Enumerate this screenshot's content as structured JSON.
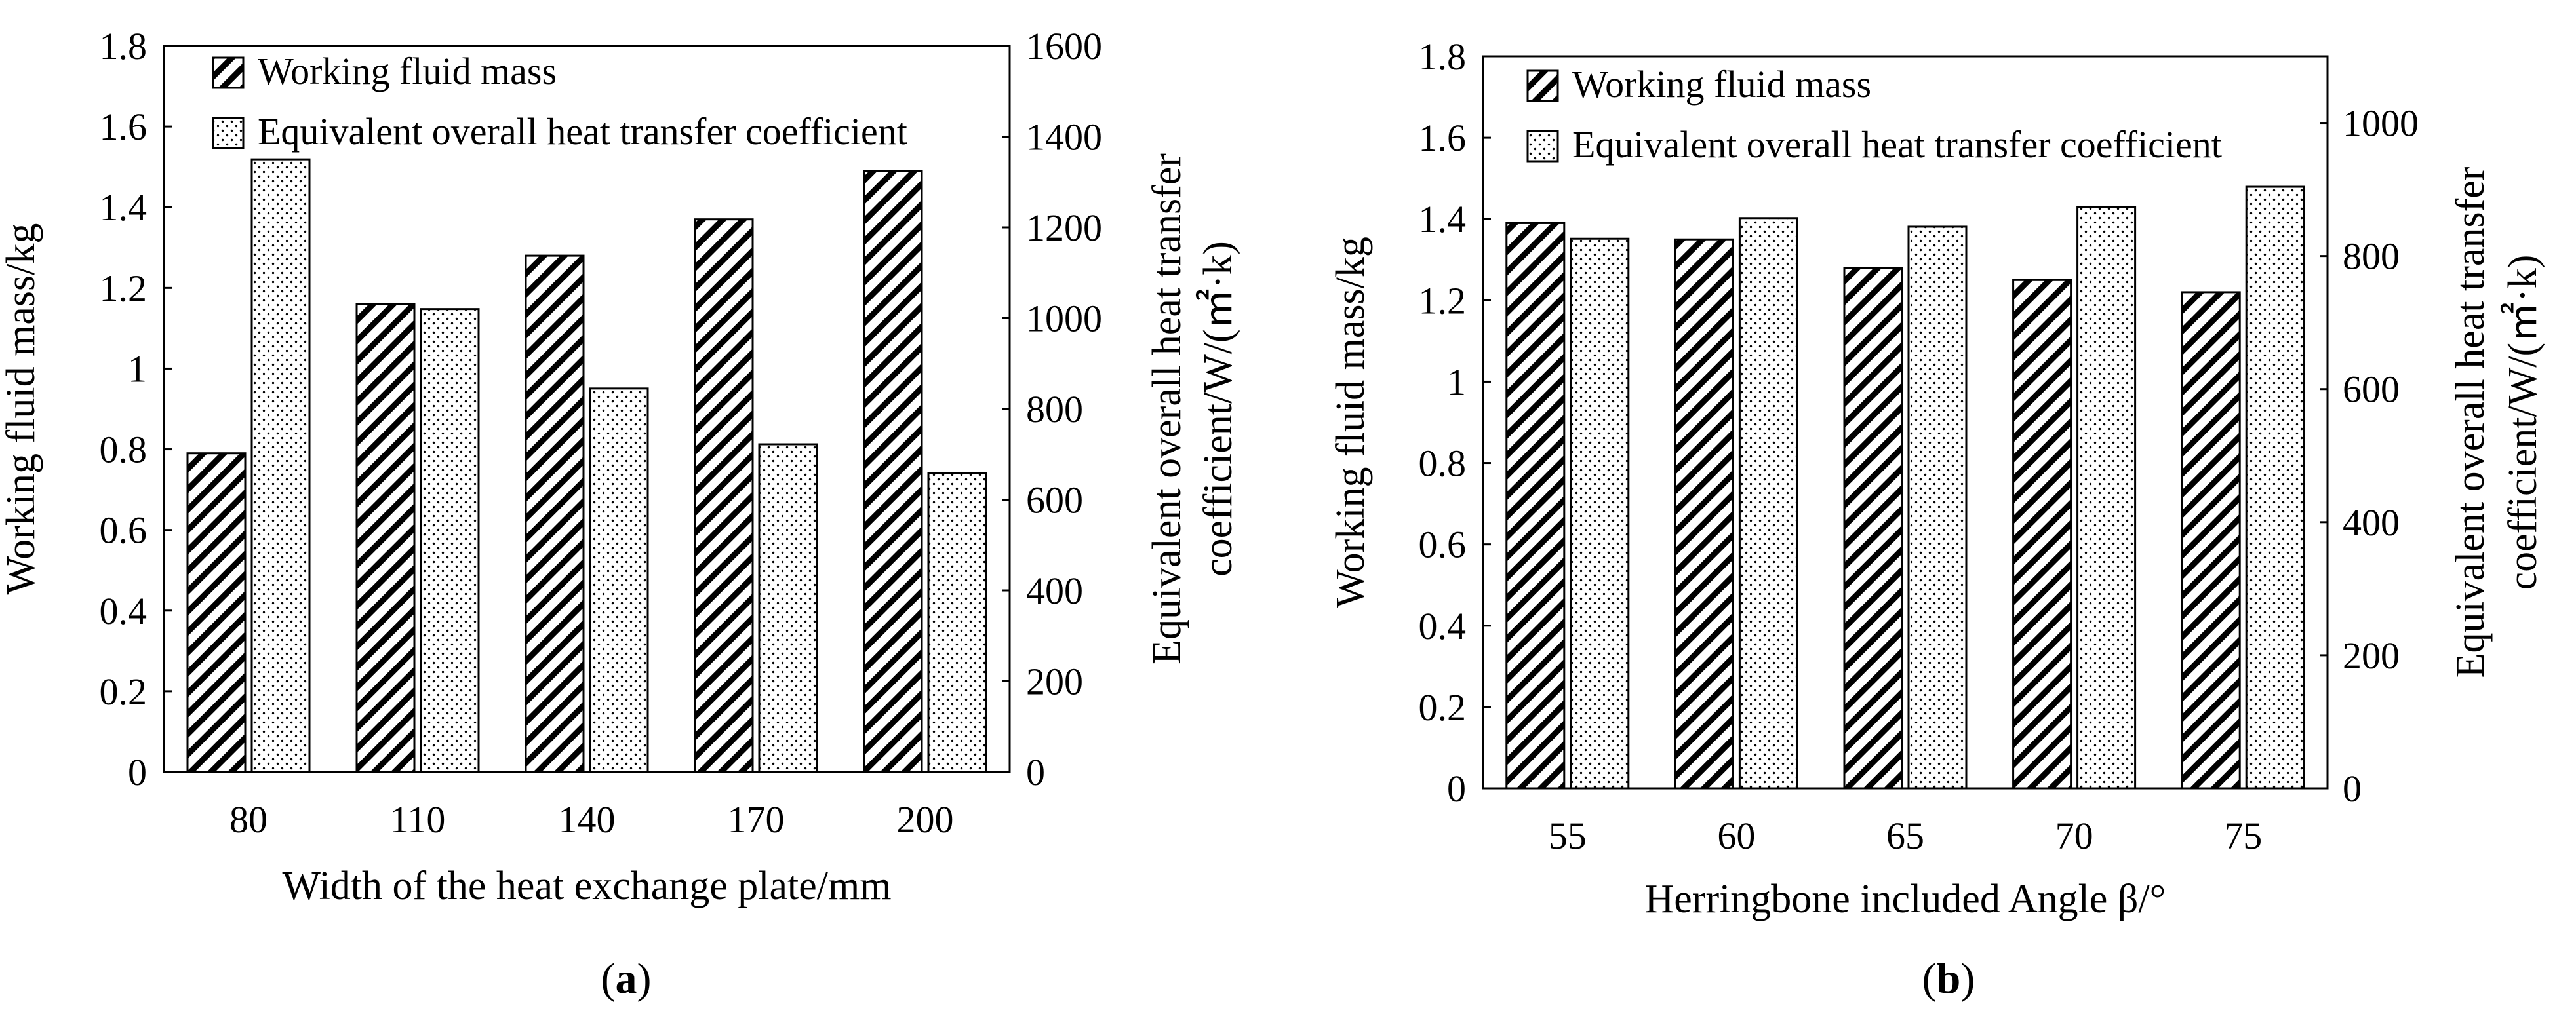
{
  "colors": {
    "axis": "#000000",
    "bar_fill": "#ffffff",
    "background": "#ffffff"
  },
  "chart_data": [
    {
      "type": "bar",
      "panel_label": "a",
      "xlabel": "Width of the heat exchange plate/mm",
      "ylabel": "Working fluid mass/kg",
      "y2label_line1": "Equivalent overall heat transfer",
      "y2label_line2": "coefficient/W/(㎡·k)",
      "categories": [
        "80",
        "110",
        "140",
        "170",
        "200"
      ],
      "ylim": [
        0,
        1.8
      ],
      "y_ticks": [
        "0",
        "0.2",
        "0.4",
        "0.6",
        "0.8",
        "1",
        "1.2",
        "1.4",
        "1.6",
        "1.8"
      ],
      "y2lim": [
        0,
        1600
      ],
      "y2_ticks": [
        "0",
        "200",
        "400",
        "600",
        "800",
        "1000",
        "1200",
        "1400",
        "1600"
      ],
      "legend_position": "top-left",
      "series": [
        {
          "name": "Working fluid mass",
          "axis": "left",
          "pattern": "hatch",
          "values": [
            0.79,
            1.16,
            1.28,
            1.37,
            1.49
          ]
        },
        {
          "name": "Equivalent overall heat transfer coefficient",
          "axis": "right",
          "pattern": "dots",
          "values": [
            1350,
            1020,
            845,
            722,
            658
          ]
        }
      ]
    },
    {
      "type": "bar",
      "panel_label": "b",
      "xlabel": "Herringbone included Angle β/°",
      "ylabel": "Working fluid mass/kg",
      "y2label_line1": "Equivalent overall heat transfer",
      "y2label_line2": "coefficient/W/(㎡·k)",
      "categories": [
        "55",
        "60",
        "65",
        "70",
        "75"
      ],
      "ylim": [
        0,
        1.8
      ],
      "y_ticks": [
        "0",
        "0.2",
        "0.4",
        "0.6",
        "0.8",
        "1",
        "1.2",
        "1.4",
        "1.6",
        "1.8"
      ],
      "y2lim": [
        0,
        1100
      ],
      "y2_ticks": [
        "0",
        "200",
        "400",
        "600",
        "800",
        "1000"
      ],
      "legend_position": "top-left",
      "series": [
        {
          "name": "Working fluid mass",
          "axis": "left",
          "pattern": "hatch",
          "values": [
            1.39,
            1.35,
            1.28,
            1.25,
            1.22
          ]
        },
        {
          "name": "Equivalent overall heat transfer coefficient",
          "axis": "right",
          "pattern": "dots",
          "values": [
            826,
            857,
            844,
            874,
            904
          ]
        }
      ]
    }
  ]
}
